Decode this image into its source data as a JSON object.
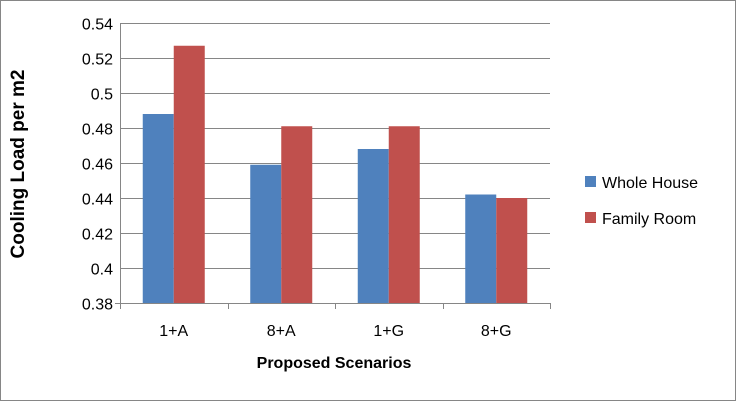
{
  "chart_data": {
    "type": "bar",
    "title": "",
    "xlabel": "Proposed Scenarios",
    "ylabel": "Cooling Load per m2",
    "categories": [
      "1+A",
      "8+A",
      "1+G",
      "8+G"
    ],
    "series": [
      {
        "name": "Whole House",
        "color": "#4F81BD",
        "values": [
          0.488,
          0.459,
          0.468,
          0.442
        ]
      },
      {
        "name": "Family Room",
        "color": "#C0504D",
        "values": [
          0.527,
          0.481,
          0.481,
          0.44
        ]
      }
    ],
    "ylim": [
      0.38,
      0.54
    ],
    "yticks": [
      "0.38",
      "0.4",
      "0.42",
      "0.44",
      "0.46",
      "0.48",
      "0.5",
      "0.52",
      "0.54"
    ],
    "grid": true,
    "legend_position": "right"
  }
}
